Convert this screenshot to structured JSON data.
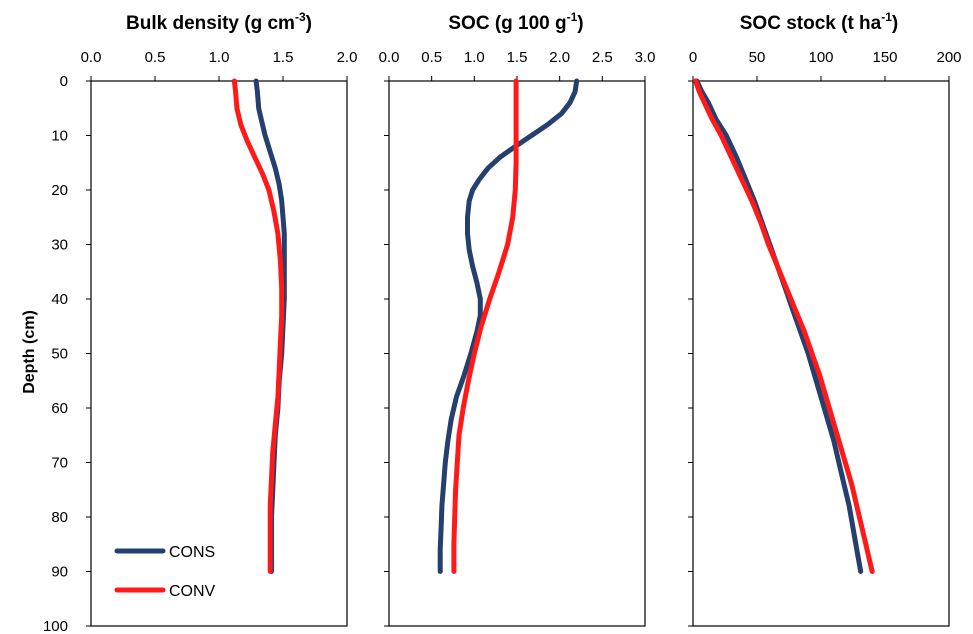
{
  "chart_data": [
    {
      "type": "line",
      "title": "Bulk density (g cm-3)",
      "title_main": "Bulk density (g cm",
      "title_sup": "-3",
      "title_end": ")",
      "xlim": [
        0,
        2.0
      ],
      "xticks": [
        "0.0",
        "0.5",
        "1.0",
        "1.5",
        "2.0"
      ],
      "ylabel": "Depth (cm)",
      "ylim": [
        0,
        100
      ],
      "yticks": [
        "0",
        "10",
        "20",
        "30",
        "40",
        "50",
        "60",
        "70",
        "80",
        "90",
        "100"
      ],
      "y_inverted": true,
      "series": [
        {
          "name": "CONS",
          "color": "#253F6E",
          "points": [
            [
              1.29,
              0
            ],
            [
              1.3,
              2
            ],
            [
              1.31,
              5
            ],
            [
              1.33,
              7
            ],
            [
              1.36,
              10
            ],
            [
              1.4,
              13
            ],
            [
              1.44,
              16
            ],
            [
              1.47,
              19
            ],
            [
              1.49,
              22
            ],
            [
              1.5,
              25
            ],
            [
              1.51,
              28
            ],
            [
              1.51,
              31
            ],
            [
              1.51,
              35
            ],
            [
              1.51,
              40
            ],
            [
              1.5,
              45
            ],
            [
              1.49,
              50
            ],
            [
              1.47,
              55
            ],
            [
              1.46,
              60
            ],
            [
              1.44,
              65
            ],
            [
              1.43,
              70
            ],
            [
              1.42,
              75
            ],
            [
              1.41,
              80
            ],
            [
              1.41,
              85
            ],
            [
              1.41,
              90
            ]
          ]
        },
        {
          "name": "CONV",
          "color": "#FF1A1A",
          "points": [
            [
              1.12,
              0
            ],
            [
              1.13,
              2
            ],
            [
              1.14,
              5
            ],
            [
              1.17,
              8
            ],
            [
              1.22,
              11
            ],
            [
              1.28,
              14
            ],
            [
              1.34,
              17
            ],
            [
              1.39,
              20
            ],
            [
              1.43,
              24
            ],
            [
              1.46,
              28
            ],
            [
              1.48,
              33
            ],
            [
              1.49,
              38
            ],
            [
              1.49,
              43
            ],
            [
              1.48,
              48
            ],
            [
              1.47,
              53
            ],
            [
              1.46,
              58
            ],
            [
              1.44,
              63
            ],
            [
              1.42,
              68
            ],
            [
              1.41,
              73
            ],
            [
              1.4,
              78
            ],
            [
              1.4,
              83
            ],
            [
              1.4,
              90
            ]
          ]
        }
      ]
    },
    {
      "type": "line",
      "title": "SOC (g 100 g-1)",
      "title_main": "SOC (g 100 g",
      "title_sup": "-1",
      "title_end": ")",
      "xlim": [
        0,
        3.0
      ],
      "xticks": [
        "0.0",
        "0.5",
        "1.0",
        "1.5",
        "2.0",
        "2.5",
        "3.0"
      ],
      "ylim": [
        0,
        100
      ],
      "y_inverted": true,
      "series": [
        {
          "name": "CONS",
          "color": "#253F6E",
          "points": [
            [
              2.2,
              0
            ],
            [
              2.18,
              2
            ],
            [
              2.12,
              4
            ],
            [
              2.02,
              6
            ],
            [
              1.86,
              8
            ],
            [
              1.67,
              10
            ],
            [
              1.48,
              12
            ],
            [
              1.3,
              14
            ],
            [
              1.16,
              16
            ],
            [
              1.06,
              18
            ],
            [
              0.98,
              20
            ],
            [
              0.94,
              22
            ],
            [
              0.92,
              25
            ],
            [
              0.92,
              28
            ],
            [
              0.94,
              31
            ],
            [
              0.98,
              34
            ],
            [
              1.03,
              37
            ],
            [
              1.07,
              40
            ],
            [
              1.07,
              43
            ],
            [
              1.03,
              46
            ],
            [
              0.96,
              50
            ],
            [
              0.88,
              54
            ],
            [
              0.79,
              58
            ],
            [
              0.73,
              62
            ],
            [
              0.69,
              66
            ],
            [
              0.66,
              70
            ],
            [
              0.64,
              74
            ],
            [
              0.62,
              78
            ],
            [
              0.61,
              82
            ],
            [
              0.6,
              86
            ],
            [
              0.6,
              90
            ]
          ]
        },
        {
          "name": "CONV",
          "color": "#FF1A1A",
          "points": [
            [
              1.49,
              0
            ],
            [
              1.49,
              3
            ],
            [
              1.49,
              7
            ],
            [
              1.49,
              10
            ],
            [
              1.49,
              15
            ],
            [
              1.48,
              20
            ],
            [
              1.45,
              25
            ],
            [
              1.39,
              30
            ],
            [
              1.29,
              35
            ],
            [
              1.18,
              40
            ],
            [
              1.08,
              45
            ],
            [
              1.0,
              50
            ],
            [
              0.93,
              55
            ],
            [
              0.87,
              60
            ],
            [
              0.82,
              65
            ],
            [
              0.8,
              70
            ],
            [
              0.78,
              75
            ],
            [
              0.77,
              80
            ],
            [
              0.76,
              85
            ],
            [
              0.76,
              90
            ]
          ]
        }
      ]
    },
    {
      "type": "line",
      "title": "SOC stock (t ha-1)",
      "title_main": "SOC stock (t ha",
      "title_sup": "-1",
      "title_end": ")",
      "xlim": [
        0,
        200
      ],
      "xticks": [
        "0",
        "50",
        "100",
        "150",
        "200"
      ],
      "ylim": [
        0,
        100
      ],
      "y_inverted": true,
      "series": [
        {
          "name": "CONS",
          "color": "#253F6E",
          "points": [
            [
              3,
              0
            ],
            [
              7,
              2
            ],
            [
              12,
              4
            ],
            [
              18,
              7
            ],
            [
              26,
              10
            ],
            [
              34,
              14
            ],
            [
              41,
              18
            ],
            [
              48,
              22
            ],
            [
              54,
              26
            ],
            [
              60,
              30
            ],
            [
              66,
              34
            ],
            [
              72,
              38
            ],
            [
              78,
              42
            ],
            [
              84,
              46
            ],
            [
              90,
              50
            ],
            [
              95,
              54
            ],
            [
              100,
              58
            ],
            [
              105,
              62
            ],
            [
              110,
              66
            ],
            [
              114,
              70
            ],
            [
              118,
              74
            ],
            [
              122,
              78
            ],
            [
              125,
              82
            ],
            [
              128,
              86
            ],
            [
              131,
              90
            ]
          ]
        },
        {
          "name": "CONV",
          "color": "#FF1A1A",
          "points": [
            [
              2,
              0
            ],
            [
              5,
              2
            ],
            [
              9,
              4
            ],
            [
              15,
              7
            ],
            [
              22,
              10
            ],
            [
              30,
              14
            ],
            [
              38,
              18
            ],
            [
              46,
              22
            ],
            [
              53,
              26
            ],
            [
              59,
              30
            ],
            [
              66,
              34
            ],
            [
              73,
              38
            ],
            [
              80,
              42
            ],
            [
              87,
              46
            ],
            [
              93,
              50
            ],
            [
              99,
              54
            ],
            [
              104,
              58
            ],
            [
              109,
              62
            ],
            [
              114,
              66
            ],
            [
              119,
              70
            ],
            [
              124,
              74
            ],
            [
              128,
              78
            ],
            [
              132,
              82
            ],
            [
              136,
              86
            ],
            [
              140,
              90
            ]
          ]
        }
      ]
    }
  ],
  "legend": {
    "position": "bottom-left of first panel",
    "items": [
      {
        "label": "CONS",
        "color": "#253F6E"
      },
      {
        "label": "CONV",
        "color": "#FF1A1A"
      }
    ]
  }
}
